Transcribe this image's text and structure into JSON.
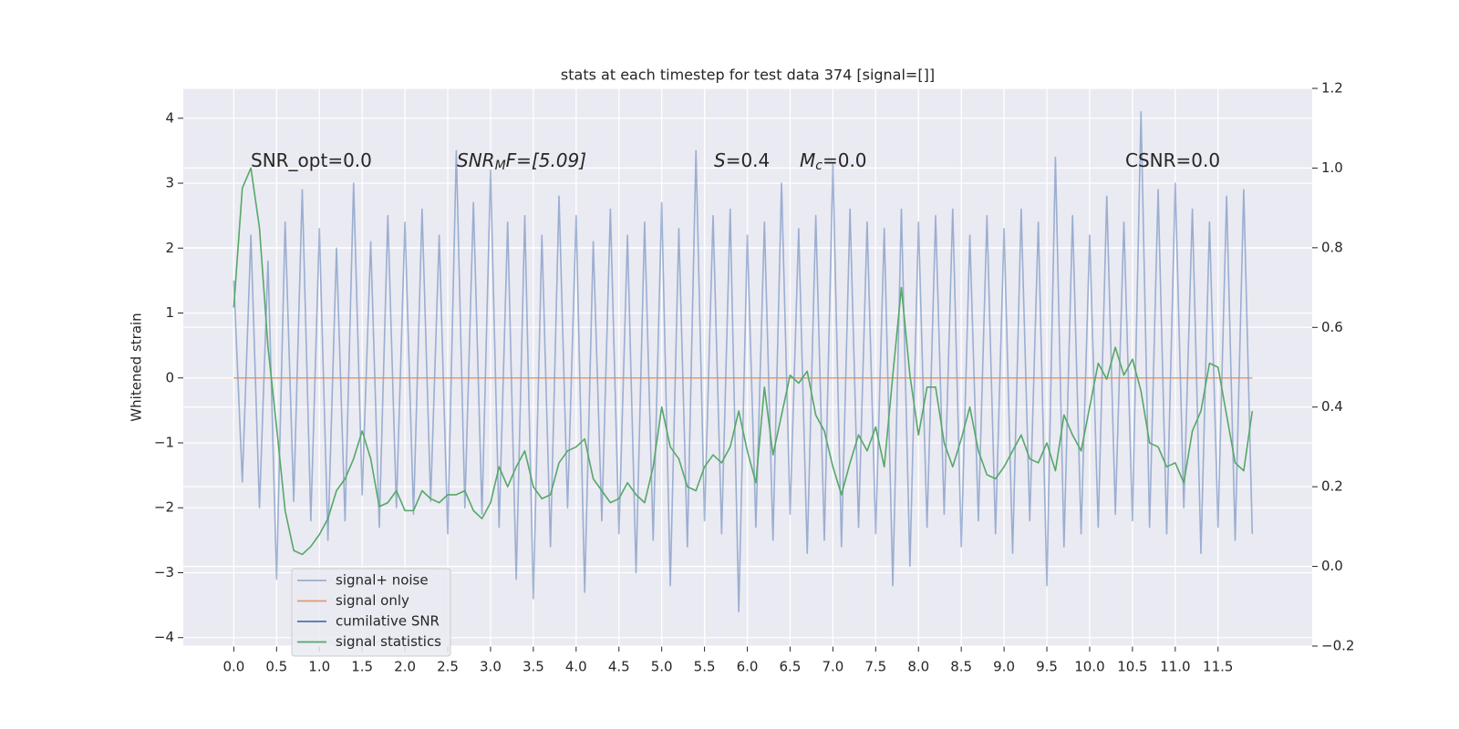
{
  "chart_data": {
    "type": "line",
    "title": "stats at each timestep for test data 374 [signal=[]]",
    "ylabel": "Whitened strain",
    "xlim": [
      -0.59,
      12.6
    ],
    "ylim": [
      -4.13,
      4.46
    ],
    "y2lim": [
      -0.2,
      1.2
    ],
    "grid": true,
    "legend": "lower left",
    "xticks": [
      {
        "value": 0,
        "label": "0.0"
      },
      0.5,
      {
        "value": 1,
        "label": "1.0"
      },
      1.5,
      {
        "value": 2,
        "label": "2.0"
      },
      2.5,
      {
        "value": 3,
        "label": "3.0"
      },
      3.5,
      {
        "value": 4,
        "label": "4.0"
      },
      4.5,
      {
        "value": 5,
        "label": "5.0"
      },
      5.5,
      {
        "value": 6,
        "label": "6.0"
      },
      6.5,
      {
        "value": 7,
        "label": "7.0"
      },
      7.5,
      {
        "value": 8,
        "label": "8.0"
      },
      8.5,
      {
        "value": 9,
        "label": "9.0"
      },
      9.5,
      {
        "value": 10,
        "label": "10.0"
      },
      10.5,
      {
        "value": 11,
        "label": "11.0"
      },
      11.5
    ],
    "yticks": [
      {
        "value": -4,
        "label": "−4"
      },
      {
        "value": -3,
        "label": "−3"
      },
      {
        "value": -2,
        "label": "−2"
      },
      {
        "value": -1,
        "label": "−1"
      },
      0,
      1,
      2,
      3,
      4
    ],
    "y2ticks": [
      {
        "value": -0.2,
        "label": "−0.2"
      },
      {
        "value": 0,
        "label": "0.0"
      },
      0.2,
      0.4,
      0.6,
      0.8,
      {
        "value": 1,
        "label": "1.0"
      },
      1.2
    ],
    "annotations": [
      {
        "text": "SNR_opt=0.0"
      },
      {
        "italic": "SNR",
        "sub": "M",
        "text": "F=[5.09]"
      },
      {
        "italic": "S",
        "text": "=0.4"
      },
      {
        "italic": "M",
        "sub": "c",
        "text": "=0.0"
      },
      {
        "text": "CSNR=0.0"
      }
    ],
    "x": [
      0,
      0.1,
      0.2,
      0.3,
      0.4,
      0.5,
      0.6,
      0.7,
      0.8,
      0.9,
      1,
      1.1,
      1.2,
      1.3,
      1.4,
      1.5,
      1.6,
      1.7,
      1.8,
      1.9,
      2,
      2.1,
      2.2,
      2.3,
      2.4,
      2.5,
      2.6,
      2.7,
      2.8,
      2.9,
      3,
      3.1,
      3.2,
      3.3,
      3.4,
      3.5,
      3.6,
      3.7,
      3.8,
      3.9,
      4,
      4.1,
      4.2,
      4.3,
      4.4,
      4.5,
      4.6,
      4.7,
      4.8,
      4.9,
      5,
      5.1,
      5.2,
      5.3,
      5.4,
      5.5,
      5.6,
      5.7,
      5.8,
      5.9,
      6,
      6.1,
      6.2,
      6.3,
      6.4,
      6.5,
      6.6,
      6.7,
      6.8,
      6.9,
      7,
      7.1,
      7.2,
      7.3,
      7.4,
      7.5,
      7.6,
      7.7,
      7.8,
      7.9,
      8,
      8.1,
      8.2,
      8.3,
      8.4,
      8.5,
      8.6,
      8.7,
      8.8,
      8.9,
      9,
      9.1,
      9.2,
      9.3,
      9.4,
      9.5,
      9.6,
      9.7,
      9.8,
      9.9,
      10,
      10.1,
      10.2,
      10.3,
      10.4,
      10.5,
      10.6,
      10.7,
      10.8,
      10.9,
      11,
      11.1,
      11.2,
      11.3,
      11.4,
      11.5,
      11.6,
      11.7,
      11.8,
      11.9
    ],
    "series": [
      {
        "name": "signal+ noise",
        "color": "#4c72b0",
        "opacity": 0.5,
        "axis": "y",
        "values": [
          1.5,
          -1.6,
          2.2,
          -2.0,
          1.8,
          -3.1,
          2.4,
          -1.9,
          2.9,
          -2.2,
          2.3,
          -2.5,
          2.0,
          -2.2,
          3.0,
          -1.8,
          2.1,
          -2.3,
          2.5,
          -2.0,
          2.4,
          -2.1,
          2.6,
          -1.9,
          2.2,
          -2.4,
          3.5,
          -2.0,
          2.7,
          -2.1,
          3.2,
          -2.3,
          2.4,
          -3.1,
          2.5,
          -3.4,
          2.2,
          -2.6,
          2.8,
          -2.0,
          2.5,
          -3.3,
          2.1,
          -2.2,
          2.6,
          -2.4,
          2.2,
          -3.0,
          2.4,
          -2.5,
          2.7,
          -3.2,
          2.3,
          -2.6,
          3.5,
          -2.2,
          2.5,
          -2.4,
          2.6,
          -3.6,
          2.2,
          -2.3,
          2.4,
          -2.5,
          3.0,
          -2.1,
          2.3,
          -2.7,
          2.5,
          -2.5,
          3.3,
          -2.6,
          2.6,
          -2.3,
          2.4,
          -2.4,
          2.3,
          -3.2,
          2.6,
          -2.9,
          2.4,
          -2.3,
          2.5,
          -2.1,
          2.6,
          -2.6,
          2.2,
          -2.2,
          2.5,
          -2.4,
          2.3,
          -2.7,
          2.6,
          -2.2,
          2.4,
          -3.2,
          3.4,
          -2.6,
          2.5,
          -2.4,
          2.2,
          -2.3,
          2.8,
          -2.1,
          2.4,
          -2.2,
          4.1,
          -2.3,
          2.9,
          -2.4,
          3.0,
          -2.0,
          2.6,
          -2.7,
          2.4,
          -2.3,
          2.8,
          -2.5,
          2.9,
          -2.4
        ]
      },
      {
        "name": "signal only",
        "color": "#dd8452",
        "opacity": 0.8,
        "axis": "y",
        "values": [
          0,
          0,
          0,
          0,
          0,
          0,
          0,
          0,
          0,
          0,
          0,
          0,
          0,
          0,
          0,
          0,
          0,
          0,
          0,
          0,
          0,
          0,
          0,
          0,
          0,
          0,
          0,
          0,
          0,
          0,
          0,
          0,
          0,
          0,
          0,
          0,
          0,
          0,
          0,
          0,
          0,
          0,
          0,
          0,
          0,
          0,
          0,
          0,
          0,
          0,
          0,
          0,
          0,
          0,
          0,
          0,
          0,
          0,
          0,
          0,
          0,
          0,
          0,
          0,
          0,
          0,
          0,
          0,
          0,
          0,
          0,
          0,
          0,
          0,
          0,
          0,
          0,
          0,
          0,
          0,
          0,
          0,
          0,
          0,
          0,
          0,
          0,
          0,
          0,
          0,
          0,
          0,
          0,
          0,
          0,
          0,
          0,
          0,
          0,
          0,
          0,
          0,
          0,
          0,
          0,
          0,
          0,
          0,
          0,
          0,
          0,
          0,
          0,
          0,
          0,
          0,
          0,
          0,
          0,
          0
        ]
      },
      {
        "name": "cumilative SNR",
        "color": "#4c72b0",
        "opacity": 1,
        "axis": "y2",
        "values": [
          null,
          null,
          null,
          null,
          null,
          null,
          null,
          null,
          null,
          null,
          null,
          null,
          null,
          null,
          null,
          null,
          null,
          null,
          null,
          null,
          null,
          null,
          null,
          null,
          null,
          null,
          null,
          null,
          null,
          null,
          null,
          null,
          null,
          null,
          null,
          null,
          null,
          null,
          null,
          null,
          null,
          null,
          null,
          null,
          null,
          null,
          null,
          null,
          null,
          null,
          null,
          null,
          null,
          null,
          null,
          null,
          null,
          null,
          null,
          null,
          null,
          null,
          null,
          null,
          null,
          null,
          null,
          null,
          null,
          null,
          null,
          null,
          null,
          null,
          null,
          null,
          null,
          null,
          null,
          null,
          null,
          null,
          null,
          null,
          null,
          null,
          null,
          null,
          null,
          null,
          null,
          null,
          null,
          null,
          null,
          null,
          null,
          null,
          null,
          null,
          null,
          null,
          null,
          null,
          null,
          null,
          null,
          null,
          null,
          null,
          null,
          null,
          null,
          null,
          null,
          null,
          null,
          null,
          null,
          null
        ]
      },
      {
        "name": "signal statistics",
        "color": "#55a868",
        "opacity": 1,
        "axis": "y2",
        "values": [
          0.65,
          0.95,
          1.0,
          0.85,
          0.55,
          0.35,
          0.14,
          0.04,
          0.03,
          0.05,
          0.08,
          0.12,
          0.19,
          0.22,
          0.27,
          0.34,
          0.27,
          0.15,
          0.16,
          0.19,
          0.14,
          0.14,
          0.19,
          0.17,
          0.16,
          0.18,
          0.18,
          0.19,
          0.14,
          0.12,
          0.16,
          0.25,
          0.2,
          0.25,
          0.29,
          0.2,
          0.17,
          0.18,
          0.26,
          0.29,
          0.3,
          0.32,
          0.22,
          0.19,
          0.16,
          0.17,
          0.21,
          0.18,
          0.16,
          0.25,
          0.4,
          0.3,
          0.27,
          0.2,
          0.19,
          0.25,
          0.28,
          0.26,
          0.3,
          0.39,
          0.29,
          0.21,
          0.45,
          0.28,
          0.38,
          0.48,
          0.46,
          0.49,
          0.38,
          0.34,
          0.25,
          0.18,
          0.26,
          0.33,
          0.29,
          0.35,
          0.25,
          0.48,
          0.7,
          0.48,
          0.33,
          0.45,
          0.45,
          0.31,
          0.25,
          0.32,
          0.4,
          0.29,
          0.23,
          0.22,
          0.25,
          0.29,
          0.33,
          0.27,
          0.26,
          0.31,
          0.24,
          0.38,
          0.33,
          0.29,
          0.4,
          0.51,
          0.47,
          0.55,
          0.48,
          0.52,
          0.44,
          0.31,
          0.3,
          0.25,
          0.26,
          0.21,
          0.34,
          0.39,
          0.51,
          0.5,
          0.38,
          0.26,
          0.24,
          0.39
        ]
      }
    ]
  }
}
